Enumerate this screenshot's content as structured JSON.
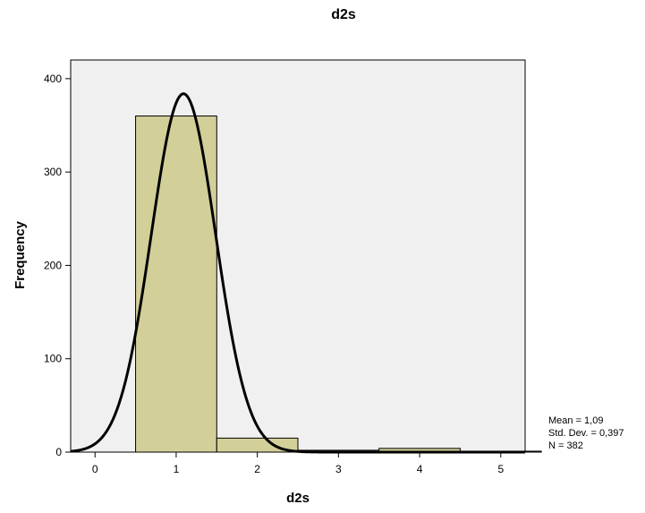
{
  "chart_data": {
    "type": "bar",
    "title": "d2s",
    "xlabel": "d2s",
    "ylabel": "Frequency",
    "bins": [
      {
        "x0": 0.5,
        "x1": 1.5,
        "value": 360
      },
      {
        "x0": 1.5,
        "x1": 2.5,
        "value": 15
      },
      {
        "x0": 2.5,
        "x1": 3.5,
        "value": 2
      },
      {
        "x0": 3.5,
        "x1": 4.5,
        "value": 4
      },
      {
        "x0": 4.5,
        "x1": 5.5,
        "value": 1
      }
    ],
    "xlim": [
      -0.3,
      5.3
    ],
    "ylim": [
      0,
      420
    ],
    "x_ticks": [
      0,
      1,
      2,
      3,
      4,
      5
    ],
    "y_ticks": [
      0,
      100,
      200,
      300,
      400
    ],
    "normal_curve": {
      "mean": 1.09,
      "std_dev": 0.397,
      "n": 382,
      "bin_width": 1
    },
    "colors": {
      "plot_background": "#f0f0f0",
      "bar_fill": "#d3cf99",
      "bar_stroke": "#000000",
      "curve": "#000000"
    },
    "grid": false
  },
  "stats": {
    "mean": "Mean = 1,09",
    "std_dev": "Std. Dev. = 0,397",
    "n": "N = 382"
  }
}
